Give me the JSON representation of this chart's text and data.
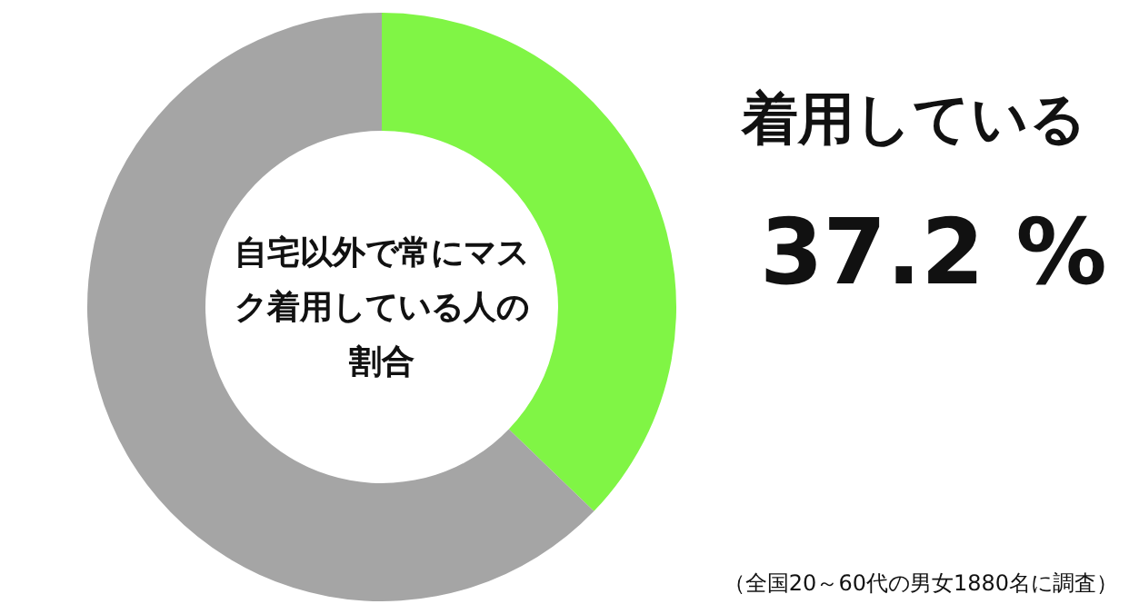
{
  "chart_data": {
    "type": "donut",
    "title": "自宅以外で常にマスク着用している人の割合",
    "categories": [
      "着用している",
      null
    ],
    "values": [
      37.2,
      62.8
    ],
    "value_labels": [
      "37.2 %",
      null
    ],
    "colors": [
      "#80f545",
      "#a5a5a5"
    ],
    "annotations": [
      "（全国20～60代の男女1880名に調査）"
    ]
  }
}
